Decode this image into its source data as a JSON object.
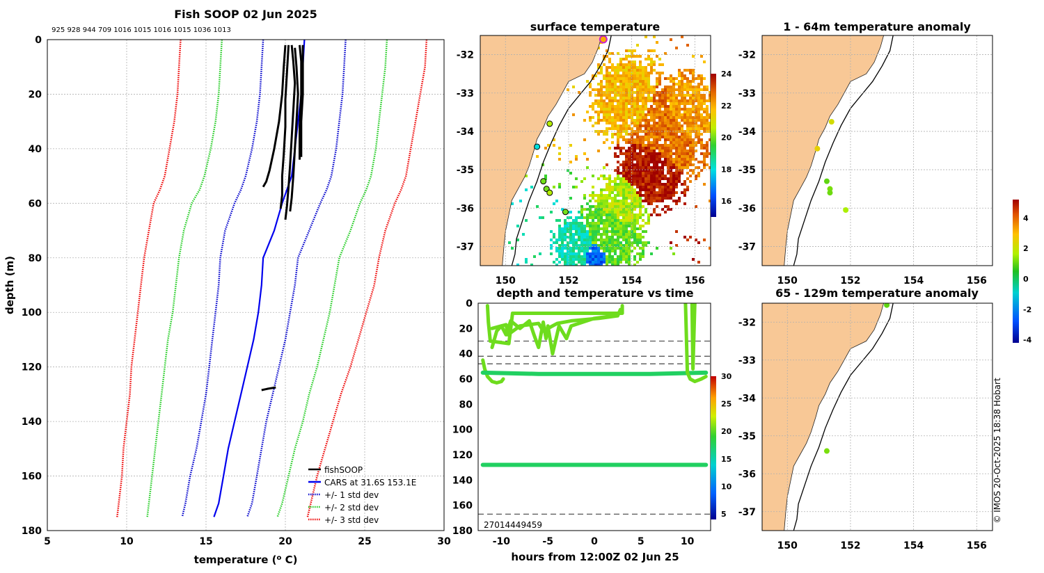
{
  "colors": {
    "land": "#F8C896",
    "fish": "#000000",
    "cars": "#0000EE",
    "std1": "#0000CC",
    "std2": "#22CC22",
    "std3": "#EE0000",
    "marker_ring": "#CC22CC"
  },
  "icons": {
    "legend_line": "line-swatch",
    "ring_marker": "circle-marker"
  },
  "chart_data": [
    {
      "type": "line",
      "title": "Fish SOOP 02 Jun 2025",
      "subtitle": "925 928 944 709 1016 1015 1016 1015 1036 1013",
      "xlabel": "temperature (",
      "xlabel_sup": "o",
      "xlabel_end": " C)",
      "ylabel": "depth (m)",
      "xlim": [
        5,
        30
      ],
      "ylim": [
        180,
        0
      ],
      "xticks": [
        "5",
        "10",
        "15",
        "20",
        "25",
        "30"
      ],
      "yticks": [
        "0",
        "20",
        "40",
        "60",
        "80",
        "100",
        "120",
        "140",
        "160",
        "180"
      ],
      "legend": [
        "fishSOOP",
        "CARS at 31.6S 153.1E",
        "+/- 1 std dev",
        "+/- 2 std dev",
        "+/- 3 std dev"
      ],
      "series": [
        {
          "name": "CARS at 31.6S 153.1E",
          "x": [
            21.2,
            21.1,
            21.0,
            20.8,
            20.6,
            20.4,
            20.1,
            19.8,
            19.3,
            18.6,
            18.5,
            18.3,
            18.0,
            17.6,
            17.2,
            16.8,
            16.4,
            16.1,
            15.8,
            15.5
          ],
          "y": [
            0,
            10,
            20,
            30,
            40,
            50,
            55,
            60,
            70,
            80,
            90,
            100,
            110,
            120,
            130,
            140,
            150,
            160,
            170,
            175
          ]
        },
        {
          "name": "-1 std dev",
          "x": [
            18.6,
            18.5,
            18.4,
            18.2,
            17.9,
            17.5,
            17.2,
            16.8,
            16.2,
            15.9,
            15.8,
            15.6,
            15.4,
            15.2,
            15.0,
            14.7,
            14.4,
            14.0,
            13.7,
            13.5
          ],
          "y": [
            0,
            10,
            20,
            30,
            40,
            50,
            55,
            60,
            70,
            80,
            90,
            100,
            110,
            120,
            130,
            140,
            150,
            160,
            170,
            175
          ]
        },
        {
          "name": "+1 std dev",
          "x": [
            23.8,
            23.7,
            23.6,
            23.4,
            23.2,
            22.9,
            22.6,
            22.2,
            21.5,
            20.8,
            20.6,
            20.3,
            20.0,
            19.6,
            19.2,
            18.8,
            18.5,
            18.2,
            17.9,
            17.6
          ],
          "y": [
            0,
            10,
            20,
            30,
            40,
            50,
            55,
            60,
            70,
            80,
            90,
            100,
            110,
            120,
            130,
            140,
            150,
            160,
            170,
            175
          ]
        },
        {
          "name": "-2 std dev",
          "x": [
            16.0,
            15.9,
            15.8,
            15.6,
            15.3,
            14.9,
            14.6,
            14.1,
            13.6,
            13.3,
            13.1,
            12.9,
            12.6,
            12.4,
            12.2,
            12.0,
            11.8,
            11.6,
            11.4,
            11.3
          ],
          "y": [
            0,
            10,
            20,
            30,
            40,
            50,
            55,
            60,
            70,
            80,
            90,
            100,
            110,
            120,
            130,
            140,
            150,
            160,
            170,
            175
          ]
        },
        {
          "name": "+2 std dev",
          "x": [
            26.4,
            26.3,
            26.1,
            25.9,
            25.7,
            25.4,
            25.1,
            24.7,
            24.1,
            23.4,
            23.1,
            22.8,
            22.4,
            22.0,
            21.5,
            21.1,
            20.6,
            20.2,
            19.8,
            19.5
          ],
          "y": [
            0,
            10,
            20,
            30,
            40,
            50,
            55,
            60,
            70,
            80,
            90,
            100,
            110,
            120,
            130,
            140,
            150,
            160,
            170,
            175
          ]
        },
        {
          "name": "-3 std dev",
          "x": [
            13.4,
            13.3,
            13.2,
            13.0,
            12.7,
            12.4,
            12.1,
            11.7,
            11.4,
            11.1,
            10.9,
            10.7,
            10.5,
            10.3,
            10.2,
            10.0,
            9.8,
            9.7,
            9.5,
            9.4
          ],
          "y": [
            0,
            10,
            20,
            30,
            40,
            50,
            55,
            60,
            70,
            80,
            90,
            100,
            110,
            120,
            130,
            140,
            150,
            160,
            170,
            175
          ]
        },
        {
          "name": "+3 std dev",
          "x": [
            28.9,
            28.8,
            28.5,
            28.2,
            27.9,
            27.6,
            27.3,
            26.9,
            26.3,
            25.9,
            25.6,
            25.1,
            24.6,
            24.1,
            23.5,
            23.0,
            22.5,
            22.0,
            21.6,
            21.4
          ],
          "y": [
            0,
            10,
            20,
            30,
            40,
            50,
            55,
            60,
            70,
            80,
            90,
            100,
            110,
            120,
            130,
            140,
            150,
            160,
            170,
            175
          ]
        },
        {
          "name": "fishSOOP",
          "x": [
            20.0,
            19.9,
            19.8,
            19.6,
            19.3,
            19.0,
            18.8,
            18.6
          ],
          "y": [
            2,
            10,
            20,
            30,
            40,
            48,
            52,
            54
          ]
        },
        {
          "name": "fishSOOP",
          "x": [
            20.2,
            20.1,
            20.0,
            20.0,
            19.9,
            19.8,
            19.8,
            19.7
          ],
          "y": [
            2,
            12,
            22,
            32,
            42,
            50,
            57,
            62
          ]
        },
        {
          "name": "fishSOOP",
          "x": [
            20.4,
            20.5,
            20.6,
            20.5,
            20.4,
            20.3,
            20.2,
            20.1,
            20.0
          ],
          "y": [
            2,
            8,
            16,
            26,
            36,
            46,
            54,
            61,
            66
          ]
        },
        {
          "name": "fishSOOP",
          "x": [
            20.6,
            20.7,
            20.8,
            20.7,
            20.6,
            20.5,
            20.4,
            20.3
          ],
          "y": [
            3,
            10,
            20,
            30,
            40,
            50,
            58,
            63
          ]
        },
        {
          "name": "fishSOOP",
          "x": [
            20.9,
            21.0,
            21.0,
            20.9,
            20.9
          ],
          "y": [
            2,
            8,
            20,
            32,
            44
          ]
        },
        {
          "name": "fishSOOP",
          "x": [
            21.1,
            21.1,
            21.1,
            21.0,
            21.0
          ],
          "y": [
            2,
            10,
            20,
            30,
            43
          ]
        },
        {
          "name": "fishSOOP",
          "x": [
            18.5,
            18.9,
            19.4
          ],
          "y": [
            128.5,
            128,
            127.5
          ]
        }
      ]
    },
    {
      "type": "heatmap",
      "title": "surface temperature",
      "xlim": [
        149.2,
        156.5
      ],
      "ylim": [
        -37.5,
        -31.5
      ],
      "xticks": [
        "150",
        "152",
        "154",
        "156"
      ],
      "yticks": [
        "-32",
        "-33",
        "-34",
        "-35",
        "-36",
        "-37"
      ],
      "colorbar": {
        "range": [
          15,
          24
        ],
        "ticks": [
          "16",
          "18",
          "20",
          "22",
          "24"
        ]
      },
      "markers": [
        {
          "lon": 153.1,
          "lat": -31.6,
          "value": 22.0
        },
        {
          "lon": 151.4,
          "lat": -33.8,
          "value": 20.5
        },
        {
          "lon": 151.0,
          "lat": -34.4,
          "value": 18.0
        },
        {
          "lon": 151.2,
          "lat": -35.3,
          "value": 20.0
        },
        {
          "lon": 151.3,
          "lat": -35.5,
          "value": 20.0
        },
        {
          "lon": 151.4,
          "lat": -35.6,
          "value": 20.5
        },
        {
          "lon": 151.9,
          "lat": -36.1,
          "value": 20.0
        }
      ]
    },
    {
      "type": "scatter",
      "title": "1 - 64m temperature anomaly",
      "xlim": [
        149.2,
        156.5
      ],
      "ylim": [
        -37.5,
        -31.5
      ],
      "xticks": [
        "150",
        "152",
        "154",
        "156"
      ],
      "yticks": [
        "-32",
        "-33",
        "-34",
        "-35",
        "-36",
        "-37"
      ],
      "points": [
        {
          "lon": 151.4,
          "lat": -33.75,
          "anomaly": 2.2
        },
        {
          "lon": 150.95,
          "lat": -34.45,
          "anomaly": 2.5
        },
        {
          "lon": 151.25,
          "lat": -35.3,
          "anomaly": 1.0
        },
        {
          "lon": 151.35,
          "lat": -35.5,
          "anomaly": 1.2
        },
        {
          "lon": 151.35,
          "lat": -35.6,
          "anomaly": 1.1
        },
        {
          "lon": 151.85,
          "lat": -36.05,
          "anomaly": 1.6
        }
      ]
    },
    {
      "type": "scatter",
      "title": "65 - 129m temperature anomaly",
      "xlim": [
        149.2,
        156.5
      ],
      "ylim": [
        -37.5,
        -31.5
      ],
      "xticks": [
        "150",
        "152",
        "154",
        "156"
      ],
      "yticks": [
        "-32",
        "-33",
        "-34",
        "-35",
        "-36",
        "-37"
      ],
      "points": [
        {
          "lon": 153.15,
          "lat": -31.55,
          "anomaly": 1.0
        },
        {
          "lon": 151.25,
          "lat": -35.4,
          "anomaly": 1.2
        }
      ]
    },
    {
      "type": "line",
      "title": "depth and temperature vs time",
      "xlabel": "hours from 12:00Z 02 Jun 25",
      "xlim": [
        -12.5,
        12.5
      ],
      "ylim": [
        180,
        0
      ],
      "xticks": [
        "-10",
        "-5",
        "0",
        "5",
        "10"
      ],
      "yticks": [
        "0",
        "20",
        "40",
        "60",
        "80",
        "100",
        "120",
        "140",
        "160",
        "180"
      ],
      "annotation": "27014449459",
      "reference_depths": [
        30,
        42,
        48,
        167
      ],
      "colorbar": {
        "range": [
          4,
          30
        ],
        "ticks": [
          "5",
          "10",
          "15",
          "20",
          "25",
          "30"
        ]
      },
      "series": [
        {
          "name": "shallow tracks",
          "x": [
            -11.5,
            -11.4,
            -11.2,
            -9.2,
            -9.0,
            -8.8,
            -2.0,
            3.0,
            3.0
          ],
          "y": [
            2,
            15,
            30,
            32,
            20,
            8,
            8,
            8,
            2
          ]
        },
        {
          "name": "step track",
          "x": [
            -11.0,
            -10.0,
            -9.5,
            -9.3,
            -8.0,
            -6.0,
            -5.5,
            -4.0,
            -2.5,
            0.5,
            2.5,
            2.8
          ],
          "y": [
            20,
            18,
            17,
            25,
            18,
            16,
            22,
            16,
            14,
            12,
            10,
            5
          ]
        },
        {
          "name": "oscillating track",
          "x": [
            -11.0,
            -10.5,
            -10.0,
            -9.5,
            -9.0,
            -8.0,
            -7.0,
            -6.5,
            -6.0,
            -5.5,
            -5.2,
            -5.0,
            -4.5,
            -3.8,
            -3.0,
            -2.5,
            0.0,
            2.0
          ],
          "y": [
            35,
            22,
            18,
            25,
            14,
            20,
            14,
            25,
            35,
            15,
            28,
            18,
            40,
            18,
            28,
            18,
            12,
            10
          ]
        },
        {
          "name": "descent track",
          "x": [
            -12.0,
            -11.8,
            -11.5,
            -11.0,
            -10.5,
            -10.0,
            -9.8
          ],
          "y": [
            45,
            52,
            58,
            62,
            63,
            62,
            60
          ]
        },
        {
          "name": "60m band",
          "x": [
            -12.0,
            -6.0,
            0.0,
            6.0,
            12.0
          ],
          "y": [
            55,
            56,
            56,
            56,
            55
          ]
        },
        {
          "name": "130m band",
          "x": [
            -12.0,
            -6.0,
            0.0,
            6.0,
            12.0
          ],
          "y": [
            128,
            128,
            128,
            128,
            128
          ]
        },
        {
          "name": "late tracks",
          "x": [
            9.8,
            10.0,
            10.3,
            10.8,
            11.5,
            12.0
          ],
          "y": [
            0,
            55,
            60,
            62,
            60,
            58
          ]
        },
        {
          "name": "late tracks",
          "x": [
            10.5,
            10.6,
            10.8
          ],
          "y": [
            0,
            52,
            0
          ]
        }
      ]
    }
  ],
  "anomaly_colorbar": {
    "range": [
      -4.2,
      5.2
    ],
    "ticks": [
      "4",
      "2",
      "0",
      "-2",
      "-4"
    ]
  },
  "footer": {
    "credit": "© IMOS 20-Oct-2025 18:38 Hobart"
  }
}
